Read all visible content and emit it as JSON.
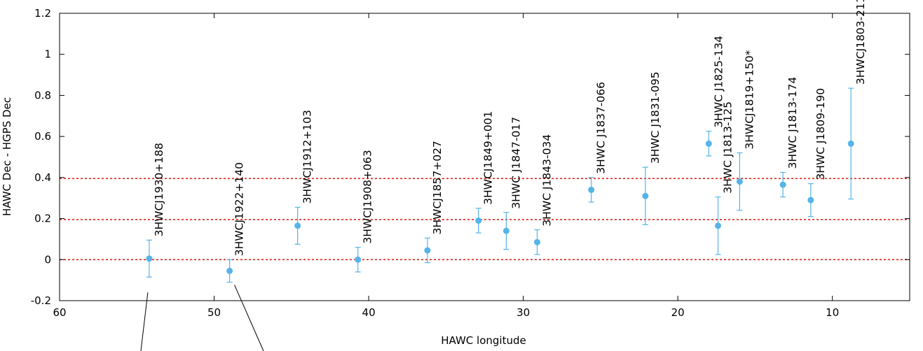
{
  "chart_data": {
    "type": "scatter",
    "title": "",
    "xlabel": "HAWC longitude",
    "ylabel": "HAWC Dec - HGPS Dec",
    "xlim": [
      60,
      5
    ],
    "ylim": [
      -0.2,
      1.2
    ],
    "x_reversed": true,
    "x_ticks": [
      60,
      50,
      40,
      30,
      20,
      10
    ],
    "x_tick_labels": [
      "60",
      "50",
      "40",
      "30",
      "20",
      "10"
    ],
    "y_ticks": [
      -0.2,
      0,
      0.2,
      0.4,
      0.6,
      0.8,
      1,
      1.2
    ],
    "y_tick_labels": [
      "-0.2",
      "0",
      "0.2",
      "0.4",
      "0.6",
      "0.8",
      "1",
      "1.2"
    ],
    "grid": false,
    "marker_color": "#56b4e9",
    "reference_line_color": "#e0201c",
    "reference_lines_y": [
      0,
      0.195,
      0.395
    ],
    "points": [
      {
        "name": "3HWCJ1930+188",
        "x": 54.2,
        "y": 0.005,
        "err_low": 0.09,
        "err_high": 0.09
      },
      {
        "name": "3HWCJ1922+140",
        "x": 49.0,
        "y": -0.055,
        "err_low": 0.055,
        "err_high": 0.055
      },
      {
        "name": "3HWCJ1912+103",
        "x": 44.6,
        "y": 0.165,
        "err_low": 0.09,
        "err_high": 0.09
      },
      {
        "name": "3HWCJ1908+063",
        "x": 40.7,
        "y": 0.0,
        "err_low": 0.06,
        "err_high": 0.06
      },
      {
        "name": "3HWCJ1857+027",
        "x": 36.2,
        "y": 0.045,
        "err_low": 0.06,
        "err_high": 0.06
      },
      {
        "name": "3HWCJ1849+001",
        "x": 32.9,
        "y": 0.19,
        "err_low": 0.06,
        "err_high": 0.06
      },
      {
        "name": "3HWC J1847-017",
        "x": 31.1,
        "y": 0.14,
        "err_low": 0.09,
        "err_high": 0.09
      },
      {
        "name": "3HWC J1843-034",
        "x": 29.1,
        "y": 0.085,
        "err_low": 0.06,
        "err_high": 0.06
      },
      {
        "name": "3HWC J1837-066",
        "x": 25.6,
        "y": 0.34,
        "err_low": 0.06,
        "err_high": 0.06
      },
      {
        "name": "3HWC J1831-095",
        "x": 22.1,
        "y": 0.31,
        "err_low": 0.14,
        "err_high": 0.14
      },
      {
        "name": "3HWC J1825-134",
        "x": 18.0,
        "y": 0.565,
        "err_low": 0.06,
        "err_high": 0.06
      },
      {
        "name": "3HWC J1813-125",
        "x": 17.4,
        "y": 0.165,
        "err_low": 0.14,
        "err_high": 0.14
      },
      {
        "name": "3HWCJ1819+150*",
        "x": 16.0,
        "y": 0.38,
        "err_low": 0.14,
        "err_high": 0.14
      },
      {
        "name": "3HWC J1813-174",
        "x": 13.2,
        "y": 0.365,
        "err_low": 0.06,
        "err_high": 0.06
      },
      {
        "name": "3HWC J1809-190",
        "x": 11.4,
        "y": 0.29,
        "err_low": 0.08,
        "err_high": 0.08
      },
      {
        "name": "3HWCJ1803-211*",
        "x": 8.8,
        "y": 0.565,
        "err_low": 0.27,
        "err_high": 0.27
      }
    ]
  }
}
